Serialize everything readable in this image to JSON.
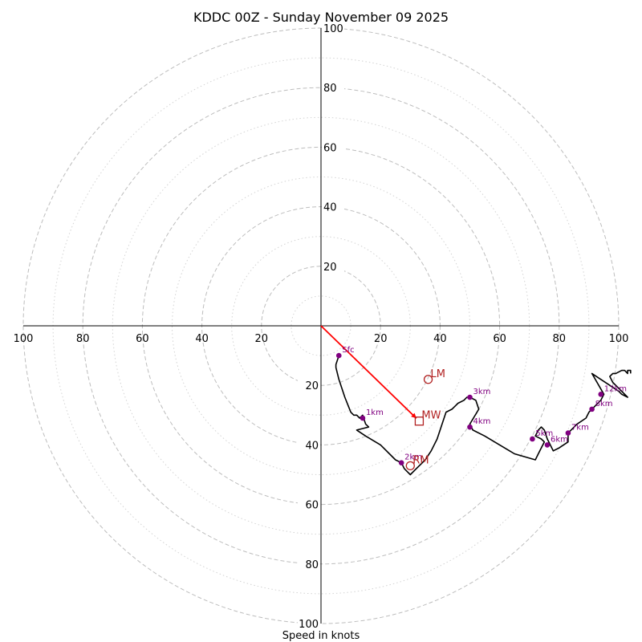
{
  "chart_data": {
    "type": "hodograph",
    "title": "KDDC 00Z - Sunday November 09 2025",
    "xlabel": "Speed in knots",
    "units": "knots",
    "range": [
      -100,
      100
    ],
    "major_rings": [
      20,
      40,
      60,
      80,
      100
    ],
    "minor_rings": [
      10,
      30,
      50,
      70,
      90
    ],
    "tick_labels": {
      "x_left": [
        "100",
        "80",
        "60",
        "40",
        "20"
      ],
      "x_right": [
        "20",
        "40",
        "60",
        "80",
        "100"
      ],
      "y_up": [
        "20",
        "40",
        "60",
        "80",
        "100"
      ],
      "y_down": [
        "20",
        "40",
        "60",
        "80",
        "100"
      ]
    },
    "trace": [
      [
        6,
        -10
      ],
      [
        5,
        -13
      ],
      [
        5,
        -14
      ],
      [
        6,
        -18
      ],
      [
        8,
        -24
      ],
      [
        10,
        -29
      ],
      [
        11,
        -30
      ],
      [
        12,
        -30
      ],
      [
        13,
        -31
      ],
      [
        14,
        -30
      ],
      [
        15,
        -33
      ],
      [
        16,
        -34
      ],
      [
        12,
        -35
      ],
      [
        15,
        -37
      ],
      [
        20,
        -40
      ],
      [
        23,
        -43
      ],
      [
        25,
        -45
      ],
      [
        27,
        -46
      ],
      [
        28,
        -48
      ],
      [
        29,
        -49
      ],
      [
        30,
        -50
      ],
      [
        32,
        -48
      ],
      [
        33,
        -47
      ],
      [
        35,
        -45
      ],
      [
        37,
        -42
      ],
      [
        39,
        -38
      ],
      [
        41,
        -32
      ],
      [
        42,
        -29
      ],
      [
        44,
        -28
      ],
      [
        45,
        -27
      ],
      [
        46,
        -26
      ],
      [
        48,
        -25
      ],
      [
        49,
        -24
      ],
      [
        50,
        -24
      ],
      [
        52,
        -25
      ],
      [
        53,
        -28
      ],
      [
        50,
        -33
      ],
      [
        51,
        -35
      ],
      [
        55,
        -37
      ],
      [
        60,
        -40
      ],
      [
        65,
        -43
      ],
      [
        72,
        -45
      ],
      [
        73,
        -43
      ],
      [
        74,
        -41
      ],
      [
        75,
        -39
      ],
      [
        74,
        -38
      ],
      [
        72,
        -37
      ],
      [
        73,
        -35
      ],
      [
        74,
        -34
      ],
      [
        75,
        -35
      ],
      [
        76,
        -38
      ],
      [
        77,
        -40
      ],
      [
        78,
        -42
      ],
      [
        80,
        -41
      ],
      [
        83,
        -39
      ],
      [
        83,
        -36
      ],
      [
        84,
        -35
      ],
      [
        86,
        -33
      ],
      [
        89,
        -31
      ],
      [
        90,
        -29
      ],
      [
        91,
        -28
      ],
      [
        92,
        -27
      ],
      [
        94,
        -25
      ],
      [
        95,
        -23
      ],
      [
        91,
        -16
      ],
      [
        97,
        -20
      ],
      [
        100,
        -22
      ],
      [
        101,
        -23
      ],
      [
        103,
        -24
      ],
      [
        101,
        -22
      ],
      [
        99,
        -20
      ],
      [
        98,
        -19
      ],
      [
        97,
        -17
      ],
      [
        98,
        -16
      ],
      [
        99,
        -16
      ],
      [
        101,
        -15
      ],
      [
        102,
        -15
      ],
      [
        103,
        -16
      ],
      [
        103,
        -15
      ],
      [
        104,
        -15
      ],
      [
        104,
        -16
      ]
    ],
    "height_markers": [
      {
        "label": "Sfc",
        "u": 6,
        "v": -10
      },
      {
        "label": "1km",
        "u": 14,
        "v": -31
      },
      {
        "label": "2km",
        "u": 27,
        "v": -46
      },
      {
        "label": "3km",
        "u": 50,
        "v": -24
      },
      {
        "label": "4km",
        "u": 50,
        "v": -34
      },
      {
        "label": "5km",
        "u": 71,
        "v": -38
      },
      {
        "label": "6km",
        "u": 76,
        "v": -40
      },
      {
        "label": "7km",
        "u": 83,
        "v": -36
      },
      {
        "label": "8km",
        "u": 91,
        "v": -28
      },
      {
        "label": "12km",
        "u": 94,
        "v": -23
      }
    ],
    "storm_motions": [
      {
        "label": "LM",
        "u": 36,
        "v": -18,
        "marker": "circle"
      },
      {
        "label": "MW",
        "u": 33,
        "v": -32,
        "marker": "square"
      },
      {
        "label": "RM",
        "u": 30,
        "v": -47,
        "marker": "circle"
      }
    ],
    "mean_wind_vector": {
      "from": [
        0,
        0
      ],
      "to": "MW",
      "color": "#ff0000"
    },
    "colors": {
      "trace": "#000000",
      "height_markers": "#800080",
      "storm_motion": "#b22222",
      "vector": "#ff0000",
      "rings": "#bdbdbd"
    }
  }
}
